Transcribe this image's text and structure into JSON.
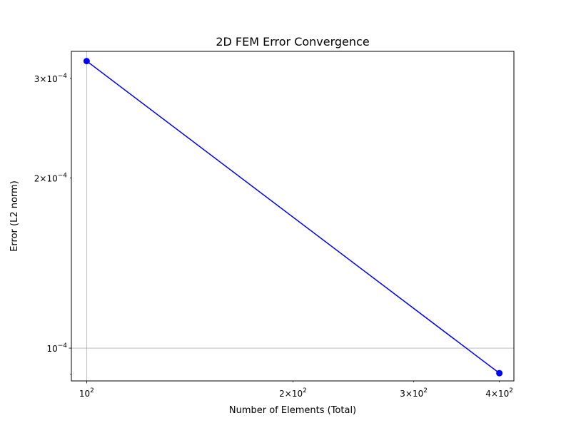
{
  "chart_data": {
    "type": "line",
    "title": "2D FEM Error Convergence",
    "xlabel": "Number of Elements (Total)",
    "ylabel": "Error (L2 norm)",
    "xscale": "log",
    "yscale": "log",
    "xlim": [
      95,
      420
    ],
    "ylim": [
      8.75e-05,
      0.000335
    ],
    "grid": true,
    "series": [
      {
        "color": "#0000ff",
        "marker": "circle",
        "x": [
          100,
          400
        ],
        "y": [
          0.000322,
          9.03e-05
        ]
      }
    ],
    "x_ticks": [
      {
        "value": 100,
        "coef": "",
        "exp": "2"
      },
      {
        "value": 200,
        "coef": "2×",
        "exp": "2"
      },
      {
        "value": 300,
        "coef": "3×",
        "exp": "2"
      },
      {
        "value": 400,
        "coef": "4×",
        "exp": "2"
      }
    ],
    "y_ticks": [
      {
        "value": 0.0001,
        "coef": "",
        "exp": "−4"
      },
      {
        "value": 0.0002,
        "coef": "2×",
        "exp": "−4"
      },
      {
        "value": 0.0003,
        "coef": "3×",
        "exp": "−4"
      }
    ],
    "x_major_grid": [
      100
    ],
    "y_major_grid": [
      0.0001
    ],
    "y_minor_ticks": [
      9e-05
    ],
    "x_minor_ticks": [
      200,
      300,
      400
    ]
  }
}
